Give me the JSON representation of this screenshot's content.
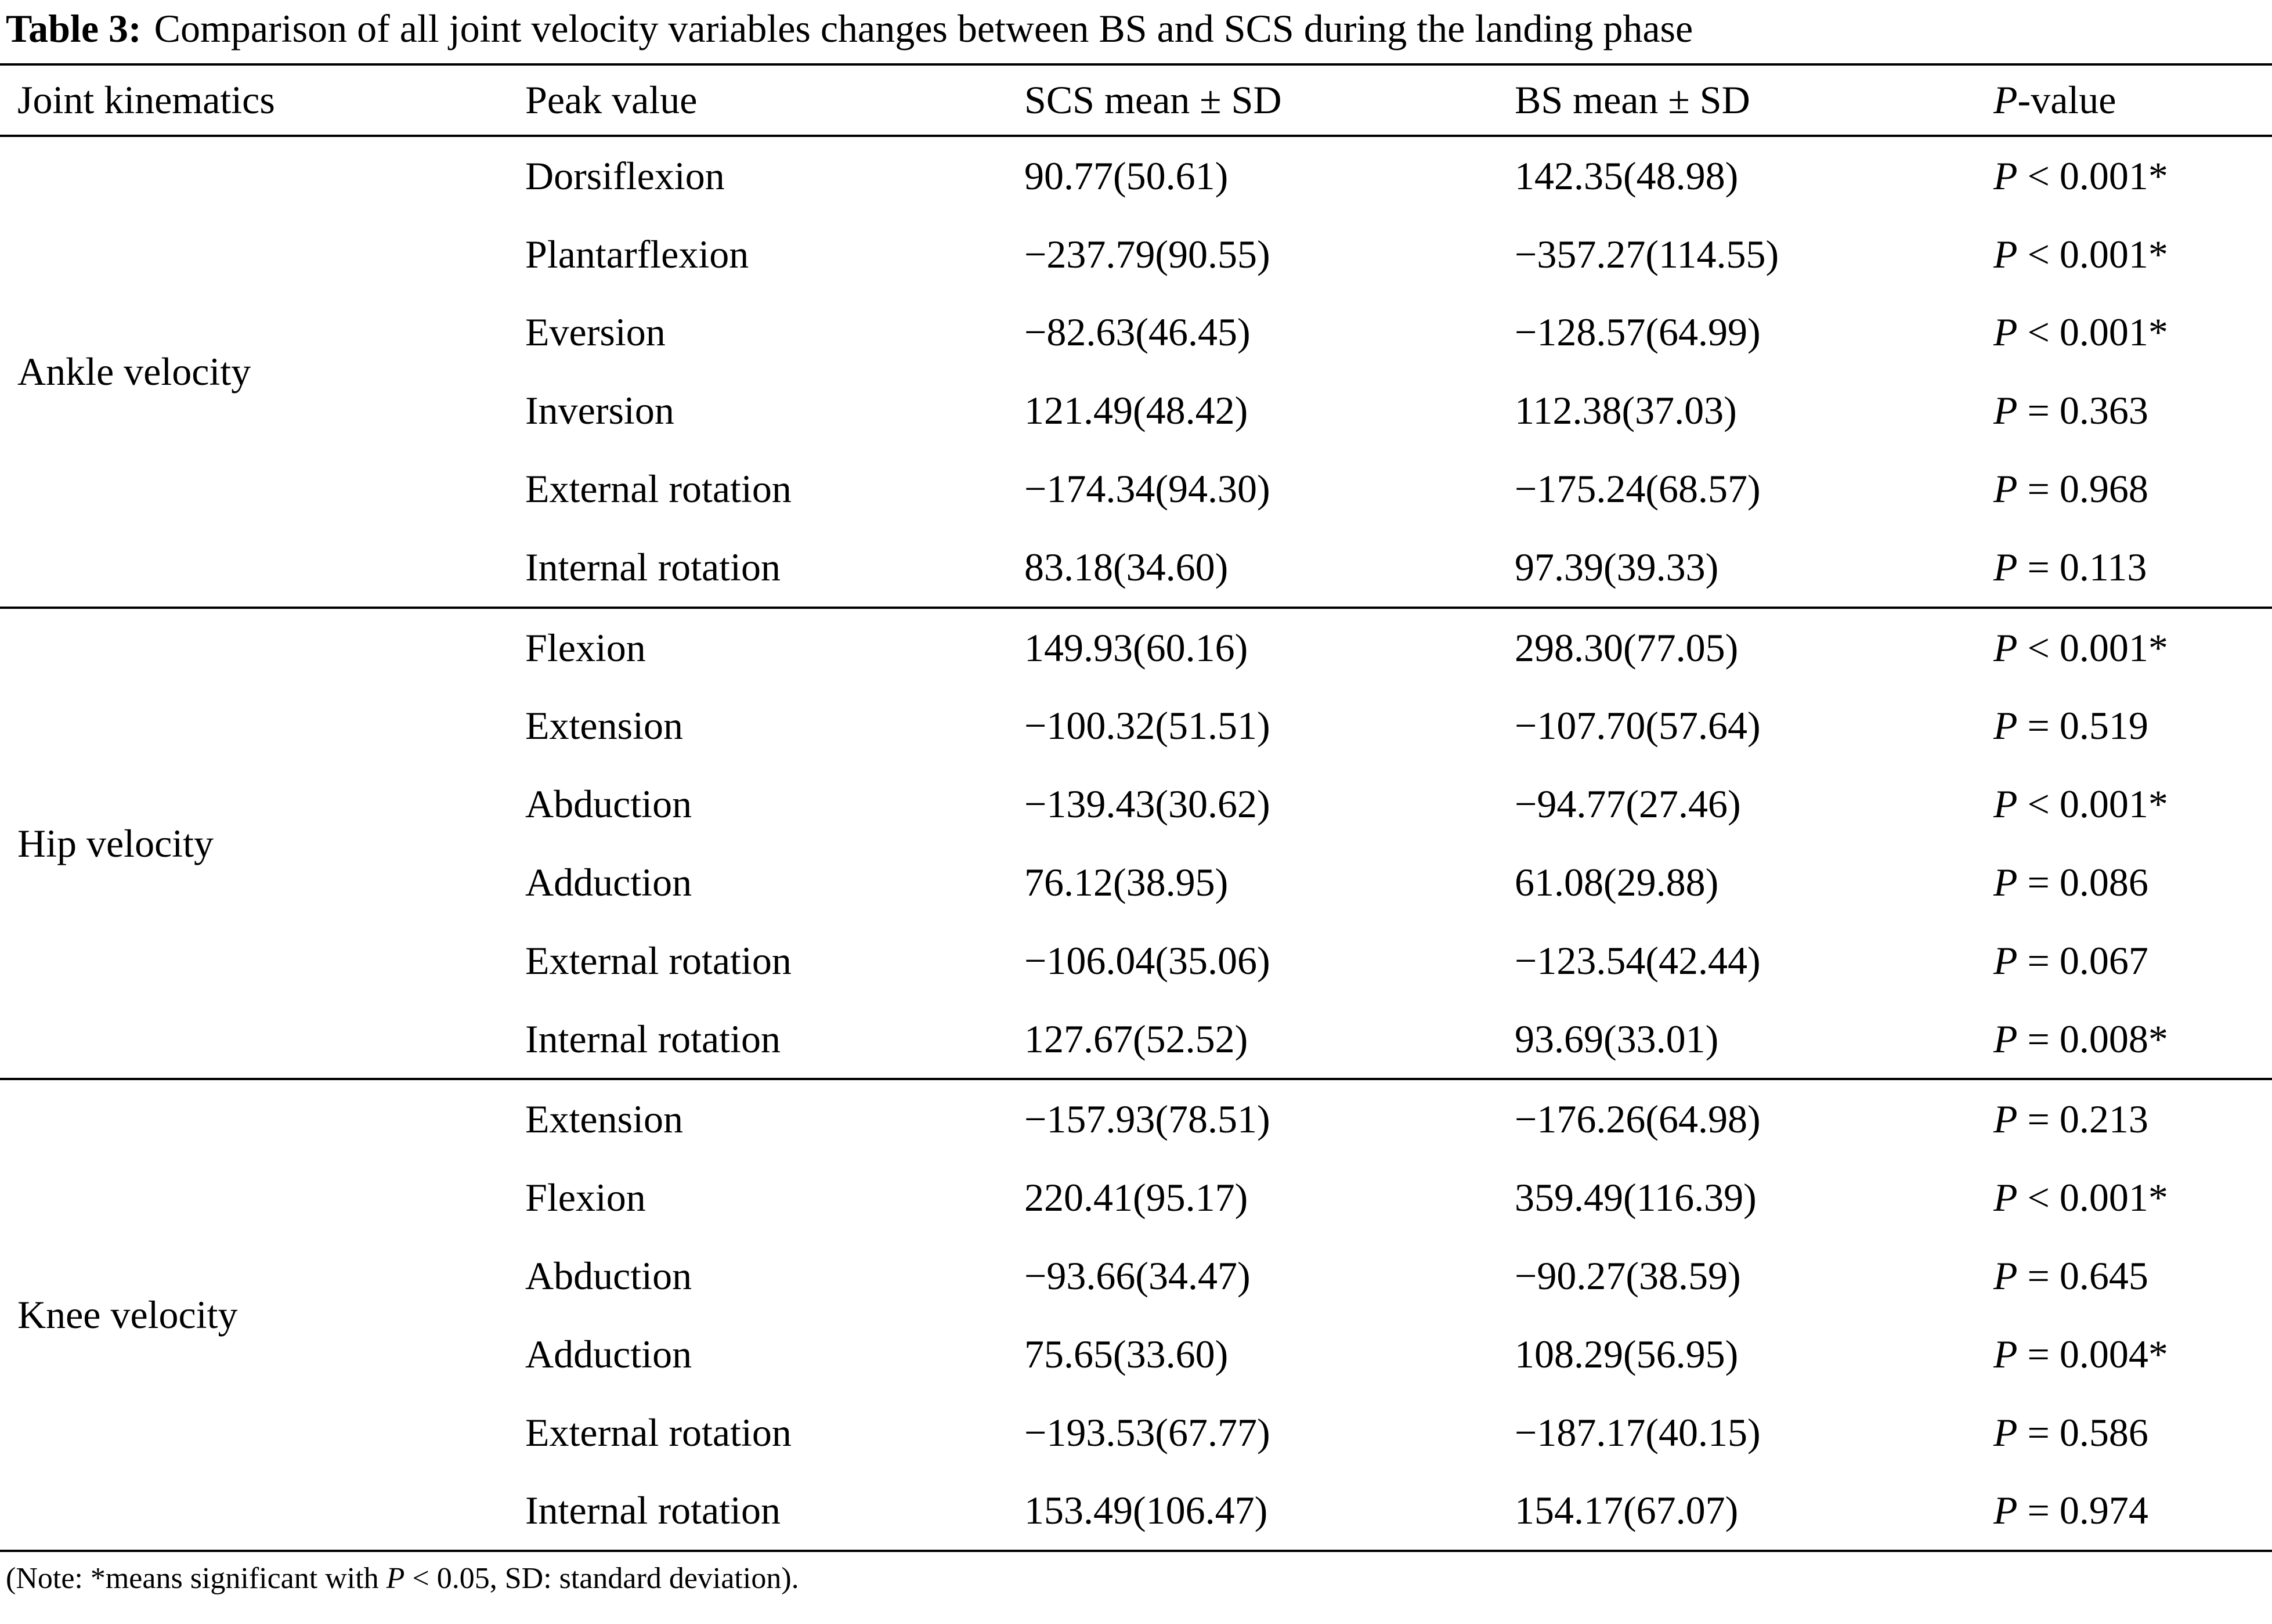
{
  "title": {
    "label": "Table 3:",
    "text": "Comparison of all joint velocity variables changes between BS and SCS during the landing phase"
  },
  "table": {
    "headers": [
      "Joint kinematics",
      "Peak value",
      "SCS mean ± SD",
      "BS mean ± SD",
      "P-value"
    ],
    "groups": [
      {
        "name": "Ankle velocity",
        "rows": [
          {
            "peak": "Dorsiflexion",
            "scs": "90.77(50.61)",
            "bs": "142.35(48.98)",
            "p": "P < 0.001*"
          },
          {
            "peak": "Plantarflexion",
            "scs": "−237.79(90.55)",
            "bs": "−357.27(114.55)",
            "p": "P < 0.001*"
          },
          {
            "peak": "Eversion",
            "scs": "−82.63(46.45)",
            "bs": "−128.57(64.99)",
            "p": "P < 0.001*"
          },
          {
            "peak": "Inversion",
            "scs": "121.49(48.42)",
            "bs": "112.38(37.03)",
            "p": "P = 0.363"
          },
          {
            "peak": "External rotation",
            "scs": "−174.34(94.30)",
            "bs": "−175.24(68.57)",
            "p": "P = 0.968"
          },
          {
            "peak": "Internal rotation",
            "scs": "83.18(34.60)",
            "bs": "97.39(39.33)",
            "p": "P = 0.113"
          }
        ]
      },
      {
        "name": "Hip velocity",
        "rows": [
          {
            "peak": "Flexion",
            "scs": "149.93(60.16)",
            "bs": "298.30(77.05)",
            "p": "P < 0.001*"
          },
          {
            "peak": "Extension",
            "scs": "−100.32(51.51)",
            "bs": "−107.70(57.64)",
            "p": "P = 0.519"
          },
          {
            "peak": "Abduction",
            "scs": "−139.43(30.62)",
            "bs": "−94.77(27.46)",
            "p": "P < 0.001*"
          },
          {
            "peak": "Adduction",
            "scs": "76.12(38.95)",
            "bs": "61.08(29.88)",
            "p": "P = 0.086"
          },
          {
            "peak": "External rotation",
            "scs": "−106.04(35.06)",
            "bs": "−123.54(42.44)",
            "p": "P = 0.067"
          },
          {
            "peak": "Internal rotation",
            "scs": "127.67(52.52)",
            "bs": "93.69(33.01)",
            "p": "P = 0.008*"
          }
        ]
      },
      {
        "name": "Knee velocity",
        "rows": [
          {
            "peak": "Extension",
            "scs": "−157.93(78.51)",
            "bs": "−176.26(64.98)",
            "p": "P = 0.213"
          },
          {
            "peak": "Flexion",
            "scs": "220.41(95.17)",
            "bs": "359.49(116.39)",
            "p": "P < 0.001*"
          },
          {
            "peak": "Abduction",
            "scs": "−93.66(34.47)",
            "bs": "−90.27(38.59)",
            "p": "P = 0.645"
          },
          {
            "peak": "Adduction",
            "scs": "75.65(33.60)",
            "bs": "108.29(56.95)",
            "p": "P = 0.004*"
          },
          {
            "peak": "External rotation",
            "scs": "−193.53(67.77)",
            "bs": "−187.17(40.15)",
            "p": "P = 0.586"
          },
          {
            "peak": "Internal rotation",
            "scs": "153.49(106.47)",
            "bs": "154.17(67.07)",
            "p": "P = 0.974"
          }
        ]
      }
    ]
  },
  "note": {
    "pre": "(Note: *means significant with ",
    "p": "P",
    "post": " < 0.05, SD: standard deviation)."
  }
}
